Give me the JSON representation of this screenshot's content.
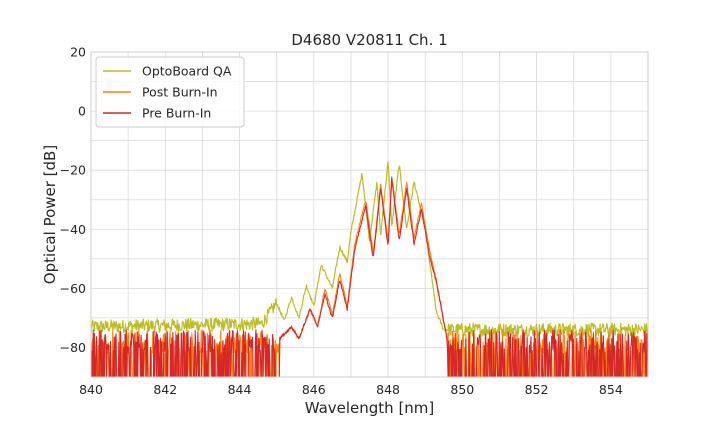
{
  "chart_data": {
    "type": "line",
    "title": "D4680 V20811 Ch. 1",
    "xlabel": "Wavelength [nm]",
    "ylabel": "Optical Power [dB]",
    "xlim": [
      840,
      855
    ],
    "ylim": [
      -90,
      20
    ],
    "xticks": [
      "840",
      "842",
      "844",
      "846",
      "848",
      "850",
      "852",
      "854"
    ],
    "yticks": [
      "20",
      "0",
      "−20",
      "−40",
      "−60",
      "−80"
    ],
    "grid": true,
    "legend_position": "top-left",
    "noise_floor_db": -78,
    "series": [
      {
        "name": "OptoBoard QA",
        "color": "#bcbd22",
        "x": [
          840,
          844.6,
          845.0,
          845.2,
          845.4,
          845.6,
          845.8,
          846.0,
          846.2,
          846.5,
          846.7,
          846.9,
          847.0,
          847.3,
          847.5,
          847.7,
          847.8,
          848.0,
          848.1,
          848.3,
          848.5,
          848.7,
          849.0,
          849.3,
          849.5,
          855
        ],
        "y": [
          -73,
          -72,
          -65,
          -71,
          -63,
          -70,
          -59,
          -66,
          -52,
          -60,
          -46,
          -51,
          -41,
          -21,
          -44,
          -24,
          -42,
          -17,
          -39,
          -18,
          -40,
          -24,
          -40,
          -68,
          -74,
          -74
        ]
      },
      {
        "name": "Post Burn-In",
        "color": "#ff7f0e",
        "x": [
          840,
          845.0,
          845.4,
          845.6,
          845.9,
          846.1,
          846.3,
          846.5,
          846.7,
          846.9,
          847.1,
          847.4,
          847.6,
          847.8,
          848.0,
          848.1,
          848.3,
          848.5,
          848.7,
          848.9,
          849.1,
          849.3,
          849.6,
          855
        ],
        "y": [
          -78,
          -78,
          -73,
          -77,
          -67,
          -73,
          -60,
          -69,
          -55,
          -66,
          -45,
          -30,
          -48,
          -25,
          -44,
          -22,
          -42,
          -24,
          -43,
          -31,
          -46,
          -57,
          -78,
          -78
        ]
      },
      {
        "name": "Pre Burn-In",
        "color": "#d62728",
        "x": [
          840,
          845.0,
          845.4,
          845.6,
          845.9,
          846.1,
          846.3,
          846.5,
          846.7,
          846.9,
          847.1,
          847.4,
          847.6,
          847.8,
          848.0,
          848.1,
          848.3,
          848.5,
          848.7,
          848.9,
          849.1,
          849.3,
          849.6,
          855
        ],
        "y": [
          -78,
          -78,
          -73,
          -77,
          -67,
          -73,
          -62,
          -70,
          -57,
          -67,
          -47,
          -32,
          -50,
          -26,
          -46,
          -23,
          -44,
          -26,
          -45,
          -33,
          -48,
          -58,
          -78,
          -78
        ]
      }
    ]
  }
}
